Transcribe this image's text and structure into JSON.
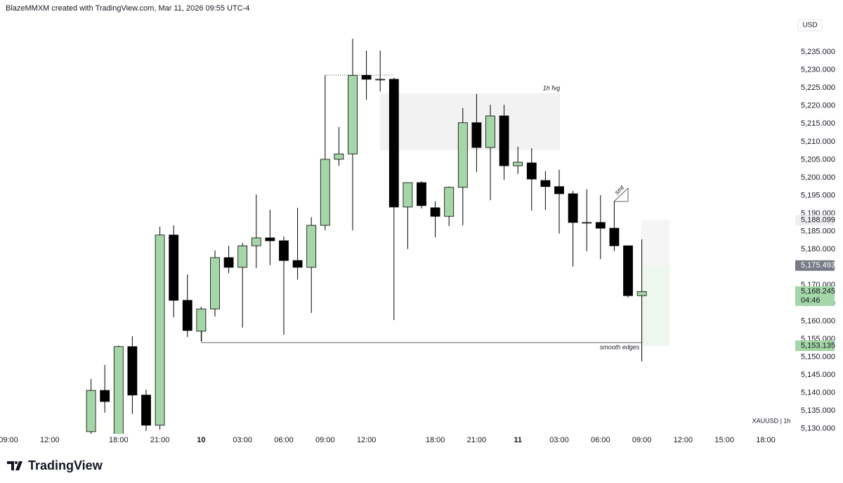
{
  "chart_data": {
    "type": "candlestick",
    "title": "BlazeMMXM created with TradingView.com, Mar 11, 2026 09:55 UTC-4",
    "currency": "USD",
    "symbol": "XAUUSD | 1h",
    "watermark": "TradingView",
    "annotations": [
      "1h fvg",
      "smt",
      "smooth edges"
    ],
    "categories": [
      "09:00",
      null,
      null,
      "12:00",
      null,
      null,
      null,
      null,
      "18:00",
      null,
      null,
      "21:00",
      null,
      null,
      "10",
      null,
      null,
      "03:00",
      null,
      null,
      "06:00",
      null,
      null,
      "09:00",
      null,
      null,
      "12:00",
      null,
      null,
      null,
      null,
      "18:00",
      null,
      null,
      "21:00",
      null,
      null,
      "11",
      null,
      null,
      "03:00",
      null,
      null,
      "06:00",
      null,
      null,
      "09:00",
      null,
      null,
      "12:00",
      null,
      null,
      "15:00",
      null,
      null,
      "18:00"
    ],
    "open": [
      null,
      null,
      null,
      null,
      null,
      null,
      5129.2,
      5140.7,
      5128.5,
      5152.9,
      5139.4,
      5131.0,
      5184.0,
      5165.8,
      5157.2,
      5163.4,
      5177.7,
      5175.0,
      5181.0,
      5183.2,
      5182.4,
      5176.9,
      5175.0,
      5186.7,
      5205.1,
      5206.6,
      5228.5,
      5227.4,
      5227.4,
      5191.8,
      5198.6,
      5191.6,
      5189.2,
      5197.3,
      5215.3,
      5208.4,
      5217.2,
      5203.3,
      5204.1,
      5199.2,
      5197.5,
      5195.5,
      5187.5,
      5187.5,
      5185.9,
      5181.0,
      5167.1,
      null,
      null,
      null,
      null,
      null,
      null,
      null,
      null,
      null
    ],
    "high": [
      null,
      null,
      null,
      null,
      null,
      null,
      5143.9,
      5147.8,
      5153.2,
      5155.8,
      5140.9,
      5186.3,
      5186.7,
      5173.0,
      5164.0,
      5179.7,
      5181.0,
      5181.8,
      5195.3,
      5191.0,
      5183.6,
      5191.6,
      5189.0,
      5228.5,
      5214.1,
      5238.7,
      5235.4,
      5235.4,
      5227.8,
      5198.6,
      5199.0,
      5193.4,
      5197.5,
      5219.4,
      5223.3,
      5220.3,
      5220.3,
      5208.6,
      5208.2,
      5201.8,
      5202.2,
      5196.3,
      5196.7,
      5195.1,
      5193.4,
      5181.0,
      5182.8,
      null,
      null,
      null,
      null,
      null,
      null,
      null,
      null,
      null
    ],
    "low": [
      null,
      null,
      null,
      null,
      null,
      null,
      5127.5,
      5134.5,
      5127.5,
      5134.1,
      5129.4,
      5129.8,
      5161.1,
      5155.6,
      5154.4,
      5161.3,
      5173.4,
      5158.2,
      5174.8,
      5175.6,
      5156.2,
      5171.6,
      5162.3,
      5185.3,
      5203.3,
      5185.3,
      5221.7,
      5224.0,
      5160.3,
      5180.1,
      5191.4,
      5183.4,
      5186.5,
      5186.7,
      5201.6,
      5193.7,
      5199.4,
      5201.0,
      5190.8,
      5191.0,
      5184.4,
      5175.2,
      5179.5,
      5177.3,
      5179.5,
      5166.6,
      5148.8,
      null,
      null,
      null,
      null,
      null,
      null,
      null,
      null,
      null
    ],
    "close": [
      null,
      null,
      null,
      null,
      null,
      null,
      5140.7,
      5137.6,
      5152.9,
      5139.4,
      5131.0,
      5184.0,
      5165.8,
      5157.4,
      5163.4,
      5177.7,
      5175.0,
      5181.0,
      5183.2,
      5182.4,
      5176.9,
      5175.0,
      5186.7,
      5205.1,
      5206.6,
      5228.5,
      5227.4,
      5227.4,
      5191.8,
      5198.6,
      5192.2,
      5189.2,
      5197.3,
      5215.3,
      5208.4,
      5217.2,
      5203.3,
      5204.3,
      5199.6,
      5197.5,
      5195.5,
      5187.5,
      5187.5,
      5185.9,
      5181.0,
      5167.1,
      5168.245,
      null,
      null,
      null,
      null,
      null,
      null,
      null,
      null,
      null
    ],
    "up_color": "#a5d6a7",
    "down_color": "#000000",
    "ylim": [
      5128.2,
      5244.6
    ],
    "yticks": [
      {
        "value": 5130,
        "label": "5,130.000"
      },
      {
        "value": 5135,
        "label": "5,135.000"
      },
      {
        "value": 5140,
        "label": "5,140.000"
      },
      {
        "value": 5145,
        "label": "5,145.000"
      },
      {
        "value": 5150,
        "label": "5,150.000"
      },
      {
        "value": 5155,
        "label": "5,155.000"
      },
      {
        "value": 5160,
        "label": "5,160.000"
      },
      {
        "value": 5165,
        "label": "5,165.000"
      },
      {
        "value": 5170,
        "label": "5,170.000"
      },
      {
        "value": 5175,
        "label": "5,175.000"
      },
      {
        "value": 5180,
        "label": "5,180.000"
      },
      {
        "value": 5185,
        "label": "5,185.000"
      },
      {
        "value": 5190,
        "label": "5,190.000"
      },
      {
        "value": 5195,
        "label": "5,195.000"
      },
      {
        "value": 5200,
        "label": "5,200.000"
      },
      {
        "value": 5205,
        "label": "5,205.000"
      },
      {
        "value": 5210,
        "label": "5,210.000"
      },
      {
        "value": 5215,
        "label": "5,215.000"
      },
      {
        "value": 5220,
        "label": "5,220.000"
      },
      {
        "value": 5225,
        "label": "5,225.000"
      },
      {
        "value": 5230,
        "label": "5,230.000"
      },
      {
        "value": 5235,
        "label": "5,235.000"
      }
    ],
    "grid": false,
    "price_labels": [
      {
        "value": 5188.099,
        "label": "5,188.099",
        "color": "#eeeeee"
      },
      {
        "value": 5175.493,
        "label": "5,175.493",
        "color": "#787b86"
      },
      {
        "value": 5168.245,
        "label": "5,168.245",
        "countdown": "04:46",
        "color": "#a5d6a7"
      },
      {
        "value": 5153.135,
        "label": "5,153.135",
        "color": "#a5d6a7"
      }
    ]
  }
}
